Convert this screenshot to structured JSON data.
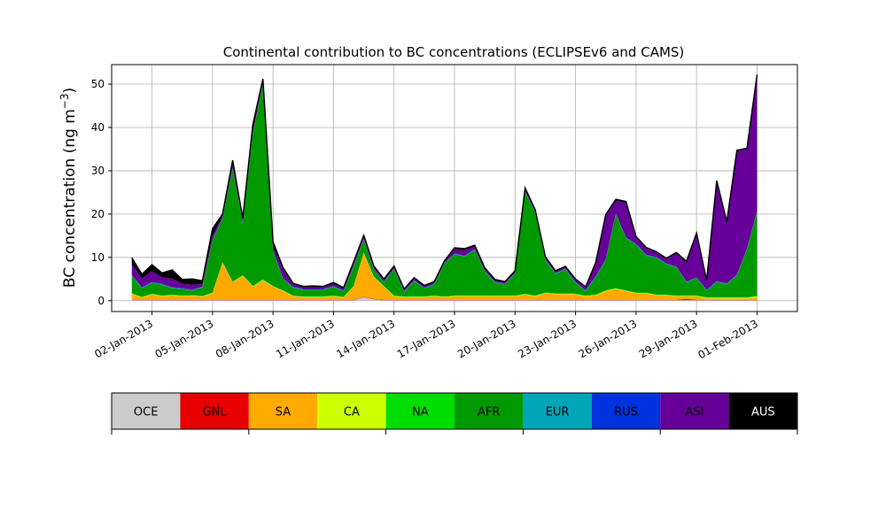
{
  "chart_data": {
    "type": "area",
    "stacked": true,
    "title": "Continental contribution to BC concentrations (ECLIPSEv6 and CAMS)",
    "ylabel_base": "BC concentration (ng m",
    "ylabel_sup": "−3",
    "ylabel_close": ")",
    "xlabel": "",
    "ylim": [
      -2.5,
      54.5
    ],
    "xlim": [
      "2012-12-31",
      "2013-02-03"
    ],
    "grid": true,
    "yticks": [
      0,
      10,
      20,
      30,
      40,
      50
    ],
    "xticks": [
      {
        "date": "2013-01-02",
        "label": "02-Jan-2013"
      },
      {
        "date": "2013-01-05",
        "label": "05-Jan-2013"
      },
      {
        "date": "2013-01-08",
        "label": "08-Jan-2013"
      },
      {
        "date": "2013-01-11",
        "label": "11-Jan-2013"
      },
      {
        "date": "2013-01-14",
        "label": "14-Jan-2013"
      },
      {
        "date": "2013-01-17",
        "label": "17-Jan-2013"
      },
      {
        "date": "2013-01-20",
        "label": "20-Jan-2013"
      },
      {
        "date": "2013-01-23",
        "label": "23-Jan-2013"
      },
      {
        "date": "2013-01-26",
        "label": "26-Jan-2013"
      },
      {
        "date": "2013-01-29",
        "label": "29-Jan-2013"
      },
      {
        "date": "2013-02-01",
        "label": "01-Feb-2013"
      }
    ],
    "x": [
      "2013-01-01",
      "2013-01-01 12:00",
      "2013-01-02",
      "2013-01-02 12:00",
      "2013-01-03",
      "2013-01-03 12:00",
      "2013-01-04",
      "2013-01-04 12:00",
      "2013-01-05",
      "2013-01-05 12:00",
      "2013-01-06",
      "2013-01-06 12:00",
      "2013-01-07",
      "2013-01-07 12:00",
      "2013-01-08",
      "2013-01-08 12:00",
      "2013-01-09",
      "2013-01-09 12:00",
      "2013-01-10",
      "2013-01-10 12:00",
      "2013-01-11",
      "2013-01-11 12:00",
      "2013-01-12",
      "2013-01-12 12:00",
      "2013-01-13",
      "2013-01-13 12:00",
      "2013-01-14",
      "2013-01-14 12:00",
      "2013-01-15",
      "2013-01-15 12:00",
      "2013-01-16",
      "2013-01-16 12:00",
      "2013-01-17",
      "2013-01-17 12:00",
      "2013-01-18",
      "2013-01-18 12:00",
      "2013-01-19",
      "2013-01-19 12:00",
      "2013-01-20",
      "2013-01-20 12:00",
      "2013-01-21",
      "2013-01-21 12:00",
      "2013-01-22",
      "2013-01-22 12:00",
      "2013-01-23",
      "2013-01-23 12:00",
      "2013-01-24",
      "2013-01-24 12:00",
      "2013-01-25",
      "2013-01-25 12:00",
      "2013-01-26",
      "2013-01-26 12:00",
      "2013-01-27",
      "2013-01-27 12:00",
      "2013-01-28",
      "2013-01-28 12:00",
      "2013-01-29",
      "2013-01-29 12:00",
      "2013-01-30",
      "2013-01-30 12:00",
      "2013-01-31",
      "2013-01-31 12:00",
      "2013-02-01"
    ],
    "series": [
      {
        "name": "OCE",
        "color": "#cccccc",
        "values": [
          0.1,
          0.1,
          0.1,
          0.1,
          0.1,
          0.1,
          0.1,
          0.1,
          0.1,
          0.1,
          0.1,
          0.1,
          0.1,
          0.1,
          0.1,
          0.1,
          0.1,
          0.1,
          0.1,
          0.1,
          0.1,
          0.1,
          0.1,
          0.8,
          0.3,
          0.1,
          0.1,
          0.1,
          0.1,
          0.1,
          0.1,
          0.1,
          0.1,
          0.1,
          0.1,
          0.1,
          0.1,
          0.1,
          0.1,
          0.1,
          0.1,
          0.1,
          0.1,
          0.1,
          0.1,
          0.1,
          0.1,
          0.1,
          0.1,
          0.1,
          0.1,
          0.1,
          0.1,
          0.1,
          0.1,
          0.1,
          0.1,
          0.1,
          0.1,
          0.1,
          0.1,
          0.1,
          0.1
        ]
      },
      {
        "name": "GNL",
        "color": "#e60000",
        "values": [
          0.1,
          0.1,
          0.1,
          0.1,
          0.1,
          0.1,
          0.1,
          0.1,
          0.1,
          0.1,
          0.1,
          0.1,
          0.1,
          0.1,
          0.1,
          0.1,
          0.1,
          0.1,
          0.1,
          0.1,
          0.1,
          0.1,
          0.1,
          0.1,
          0.1,
          0.1,
          0.1,
          0.1,
          0.1,
          0.1,
          0.1,
          0.1,
          0.1,
          0.1,
          0.1,
          0.1,
          0.1,
          0.1,
          0.1,
          0.1,
          0.1,
          0.1,
          0.1,
          0.1,
          0.1,
          0.1,
          0.1,
          0.1,
          0.1,
          0.1,
          0.1,
          0.1,
          0.1,
          0.1,
          0.1,
          0.3,
          0.1,
          0.1,
          0.1,
          0.1,
          0.1,
          0.1,
          0.1
        ]
      },
      {
        "name": "SA",
        "color": "#ffaa00",
        "values": [
          1.3,
          0.5,
          1.2,
          0.8,
          1.0,
          0.8,
          0.9,
          0.7,
          1.5,
          8.5,
          4.0,
          5.5,
          3.0,
          4.5,
          3.0,
          2.0,
          0.8,
          0.6,
          0.6,
          0.6,
          0.8,
          0.5,
          3.0,
          10.0,
          5.0,
          3.0,
          0.8,
          0.6,
          0.6,
          0.6,
          0.8,
          0.6,
          0.8,
          0.8,
          0.8,
          0.8,
          0.8,
          0.8,
          0.8,
          1.2,
          0.8,
          1.5,
          1.3,
          1.3,
          1.2,
          0.8,
          1.0,
          2.0,
          2.5,
          2.0,
          1.5,
          1.5,
          1.0,
          1.0,
          0.8,
          0.6,
          0.8,
          0.3,
          0.3,
          0.3,
          0.3,
          0.3,
          0.5
        ]
      },
      {
        "name": "CA",
        "color": "#ccff00",
        "values": [
          0.1,
          0.1,
          0.1,
          0.1,
          0.1,
          0.1,
          0.1,
          0.1,
          0.1,
          0.1,
          0.1,
          0.1,
          0.1,
          0.1,
          0.1,
          0.1,
          0.1,
          0.1,
          0.1,
          0.1,
          0.1,
          0.1,
          0.1,
          0.1,
          0.1,
          0.1,
          0.1,
          0.1,
          0.1,
          0.1,
          0.1,
          0.1,
          0.1,
          0.1,
          0.1,
          0.1,
          0.1,
          0.1,
          0.1,
          0.1,
          0.1,
          0.1,
          0.1,
          0.1,
          0.1,
          0.1,
          0.1,
          0.1,
          0.1,
          0.1,
          0.1,
          0.1,
          0.1,
          0.1,
          0.1,
          0.1,
          0.1,
          0.2,
          0.2,
          0.2,
          0.2,
          0.2,
          0.3
        ]
      },
      {
        "name": "NA",
        "color": "#00dd00",
        "values": [
          0.1,
          0.1,
          0.1,
          0.1,
          0.1,
          0.1,
          0.1,
          0.1,
          0.1,
          0.1,
          0.1,
          0.1,
          0.1,
          0.1,
          0.1,
          0.1,
          0.1,
          0.1,
          0.1,
          0.1,
          0.1,
          0.1,
          0.1,
          0.1,
          0.1,
          0.1,
          0.1,
          0.1,
          0.1,
          0.1,
          0.1,
          0.1,
          0.1,
          0.1,
          0.1,
          0.1,
          0.1,
          0.1,
          0.1,
          0.1,
          0.1,
          0.1,
          0.1,
          0.1,
          0.1,
          0.1,
          0.1,
          0.1,
          0.1,
          0.1,
          0.1,
          0.1,
          0.1,
          0.1,
          0.1,
          0.1,
          0.1,
          0.1,
          0.1,
          0.1,
          0.1,
          0.1,
          0.1
        ]
      },
      {
        "name": "AFR",
        "color": "#009900",
        "values": [
          4.0,
          2.0,
          2.5,
          2.5,
          1.5,
          1.5,
          1.0,
          2.0,
          12.0,
          10.0,
          26.0,
          12.0,
          35.0,
          45.0,
          8.0,
          2.5,
          1.8,
          1.5,
          1.5,
          1.5,
          2.0,
          1.2,
          4.5,
          3.0,
          1.5,
          0.8,
          6.0,
          1.0,
          3.5,
          1.8,
          2.5,
          7.5,
          9.5,
          9.0,
          10.5,
          5.5,
          3.0,
          2.5,
          5.0,
          23.5,
          19.0,
          7.5,
          4.5,
          5.5,
          2.5,
          1.0,
          4.0,
          7.0,
          17.0,
          12.0,
          11.0,
          8.5,
          8.5,
          7.0,
          6.5,
          3.0,
          4.0,
          1.5,
          3.5,
          3.0,
          5.0,
          11.0,
          19.5
        ]
      },
      {
        "name": "EUR",
        "color": "#00a6b8",
        "values": [
          0.1,
          0.1,
          0.1,
          0.1,
          0.1,
          0.1,
          0.1,
          0.1,
          0.1,
          0.1,
          0.1,
          0.1,
          0.1,
          0.1,
          0.1,
          0.1,
          0.1,
          0.1,
          0.1,
          0.1,
          0.1,
          0.1,
          0.1,
          0.1,
          0.1,
          0.1,
          0.1,
          0.1,
          0.1,
          0.1,
          0.1,
          0.1,
          0.1,
          0.1,
          0.1,
          0.1,
          0.1,
          0.1,
          0.1,
          0.1,
          0.1,
          0.1,
          0.1,
          0.1,
          0.1,
          0.1,
          0.1,
          0.1,
          0.1,
          0.1,
          0.1,
          0.1,
          0.1,
          0.1,
          0.1,
          0.1,
          0.1,
          0.1,
          0.1,
          0.1,
          0.1,
          0.1,
          0.1
        ]
      },
      {
        "name": "RUS",
        "color": "#0033dd",
        "values": [
          0.1,
          0.1,
          0.1,
          0.1,
          0.1,
          0.1,
          0.1,
          0.1,
          0.1,
          0.1,
          0.1,
          0.1,
          0.1,
          0.1,
          0.1,
          0.1,
          0.1,
          0.1,
          0.1,
          0.1,
          0.1,
          0.1,
          0.1,
          0.1,
          0.1,
          0.1,
          0.1,
          0.1,
          0.1,
          0.1,
          0.1,
          0.1,
          0.1,
          0.1,
          0.1,
          0.1,
          0.1,
          0.1,
          0.1,
          0.1,
          0.1,
          0.1,
          0.1,
          0.1,
          0.1,
          0.1,
          0.1,
          0.1,
          0.1,
          0.1,
          0.1,
          0.1,
          0.1,
          0.1,
          0.1,
          0.1,
          0.1,
          0.1,
          0.1,
          0.1,
          0.1,
          0.1,
          0.1
        ]
      },
      {
        "name": "ASI",
        "color": "#660099",
        "values": [
          2.5,
          2.0,
          2.5,
          1.5,
          2.0,
          1.0,
          1.2,
          0.5,
          1.0,
          0.4,
          0.8,
          0.4,
          0.5,
          0.5,
          1.0,
          2.0,
          0.5,
          0.4,
          0.4,
          0.4,
          0.5,
          0.4,
          0.5,
          0.5,
          0.5,
          0.3,
          0.3,
          0.3,
          0.3,
          0.3,
          0.3,
          0.3,
          1.0,
          1.3,
          0.6,
          0.5,
          0.3,
          0.3,
          0.3,
          0.4,
          0.3,
          0.4,
          0.3,
          0.3,
          0.5,
          0.6,
          3.0,
          10.0,
          3.0,
          8.0,
          1.5,
          1.5,
          1.0,
          1.0,
          3.0,
          4.5,
          10.0,
          2.0,
          23.0,
          14.0,
          28.5,
          23.0,
          31.0
        ]
      },
      {
        "name": "AUS",
        "color": "#000000",
        "values": [
          1.5,
          1.0,
          1.5,
          1.0,
          2.0,
          1.0,
          1.3,
          0.8,
          1.5,
          0.5,
          1.0,
          0.5,
          1.5,
          0.6,
          1.0,
          0.5,
          0.3,
          0.2,
          0.3,
          0.2,
          0.3,
          0.3,
          0.4,
          0.3,
          0.2,
          0.3,
          0.3,
          0.2,
          0.3,
          0.2,
          0.2,
          0.2,
          0.3,
          0.3,
          0.3,
          0.2,
          0.2,
          0.2,
          0.2,
          0.3,
          0.3,
          0.2,
          0.2,
          0.2,
          0.2,
          0.2,
          0.2,
          0.3,
          0.3,
          0.3,
          0.2,
          0.2,
          0.2,
          0.2,
          0.2,
          0.2,
          0.2,
          0.2,
          0.2,
          0.2,
          0.2,
          0.2,
          0.4
        ]
      }
    ]
  }
}
